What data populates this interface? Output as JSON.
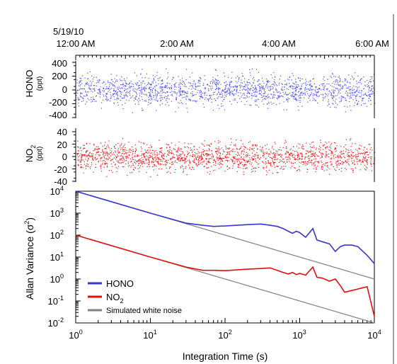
{
  "chart_data": [
    {
      "panel": "HONO time series",
      "type": "scatter",
      "date_label": "5/19/10",
      "x_ticks": [
        "12:00 AM",
        "2:00 AM",
        "4:00 AM",
        "6:00 AM"
      ],
      "x_range_hours": [
        0,
        6
      ],
      "ylabel": "HONO",
      "yunits": "(ppt)",
      "y_ticks": [
        "400",
        "200",
        "0",
        "-200",
        "-400"
      ],
      "ylim": [
        -400,
        400
      ],
      "noise_sd": 110,
      "color": "#4a4ff0"
    },
    {
      "panel": "NO2 time series",
      "type": "scatter",
      "x_range_hours": [
        0,
        6
      ],
      "ylabel_main": "NO",
      "ylabel_sub": "2",
      "yunits": "(ppt)",
      "y_ticks": [
        "40",
        "20",
        "0",
        "-20",
        "-40"
      ],
      "ylim": [
        -40,
        40
      ],
      "noise_sd": 11,
      "color": "#ee1111"
    },
    {
      "panel": "Allan variance",
      "type": "line",
      "log_x": true,
      "log_y": true,
      "xlim": [
        1,
        10000
      ],
      "ylim": [
        0.01,
        10000
      ],
      "xlabel": "Integration Time (s)",
      "ylabel_main": "Allan Variance (σ",
      "ylabel_sup": "2",
      "ylabel_end": ")",
      "x_tick_bases": [
        "10",
        "10",
        "10",
        "10",
        "10"
      ],
      "x_tick_exps": [
        "0",
        "1",
        "2",
        "3",
        "4"
      ],
      "y_tick_bases": [
        "10",
        "10",
        "10",
        "10",
        "10",
        "10",
        "10"
      ],
      "y_tick_exps": [
        "4",
        "3",
        "2",
        "1",
        "0",
        "-1",
        "-2"
      ],
      "legend": {
        "position": "bottom-left",
        "entries": [
          {
            "label": "HONO",
            "sub": "",
            "color": "#3535d0"
          },
          {
            "label": "NO",
            "sub": "2",
            "color": "#dd1111"
          },
          {
            "label": "Simulated white noise",
            "sub": "",
            "color": "#808080"
          }
        ]
      },
      "series": [
        {
          "name": "HONO",
          "color": "#3535d0",
          "points": [
            [
              1,
              10000
            ],
            [
              10,
              1000
            ],
            [
              30,
              350
            ],
            [
              50,
              280
            ],
            [
              70,
              250
            ],
            [
              100,
              260
            ],
            [
              200,
              300
            ],
            [
              300,
              320
            ],
            [
              400,
              280
            ],
            [
              500,
              250
            ],
            [
              600,
              200
            ],
            [
              700,
              150
            ],
            [
              800,
              120
            ],
            [
              900,
              150
            ],
            [
              1000,
              130
            ],
            [
              1200,
              80
            ],
            [
              1500,
              200
            ],
            [
              1700,
              60
            ],
            [
              2000,
              50
            ],
            [
              2500,
              40
            ],
            [
              3000,
              18
            ],
            [
              3500,
              30
            ],
            [
              4000,
              35
            ],
            [
              5000,
              35
            ],
            [
              6000,
              30
            ],
            [
              8000,
              12
            ],
            [
              10000,
              5
            ]
          ]
        },
        {
          "name": "NO2",
          "color": "#dd1111",
          "points": [
            [
              1,
              100
            ],
            [
              10,
              10
            ],
            [
              30,
              3.5
            ],
            [
              50,
              2.5
            ],
            [
              70,
              2.5
            ],
            [
              100,
              2.4
            ],
            [
              200,
              2.8
            ],
            [
              300,
              3.0
            ],
            [
              400,
              3.2
            ],
            [
              500,
              2.5
            ],
            [
              600,
              2.0
            ],
            [
              700,
              1.7
            ],
            [
              800,
              2.0
            ],
            [
              900,
              1.6
            ],
            [
              1000,
              1.8
            ],
            [
              1200,
              1.5
            ],
            [
              1500,
              3.5
            ],
            [
              1700,
              1.2
            ],
            [
              2000,
              1.1
            ],
            [
              2500,
              0.8
            ],
            [
              3000,
              1.0
            ],
            [
              3500,
              0.5
            ],
            [
              4000,
              0.25
            ],
            [
              5000,
              0.3
            ],
            [
              6000,
              0.35
            ],
            [
              8000,
              0.45
            ],
            [
              10000,
              0.02
            ]
          ]
        },
        {
          "name": "Simulated white noise",
          "color": "#808080",
          "points": [
            [
              1,
              10000
            ],
            [
              10000,
              1
            ]
          ]
        },
        {
          "name": "Simulated white noise",
          "color": "#808080",
          "points": [
            [
              1,
              100
            ],
            [
              10000,
              0.01
            ]
          ]
        }
      ]
    }
  ]
}
